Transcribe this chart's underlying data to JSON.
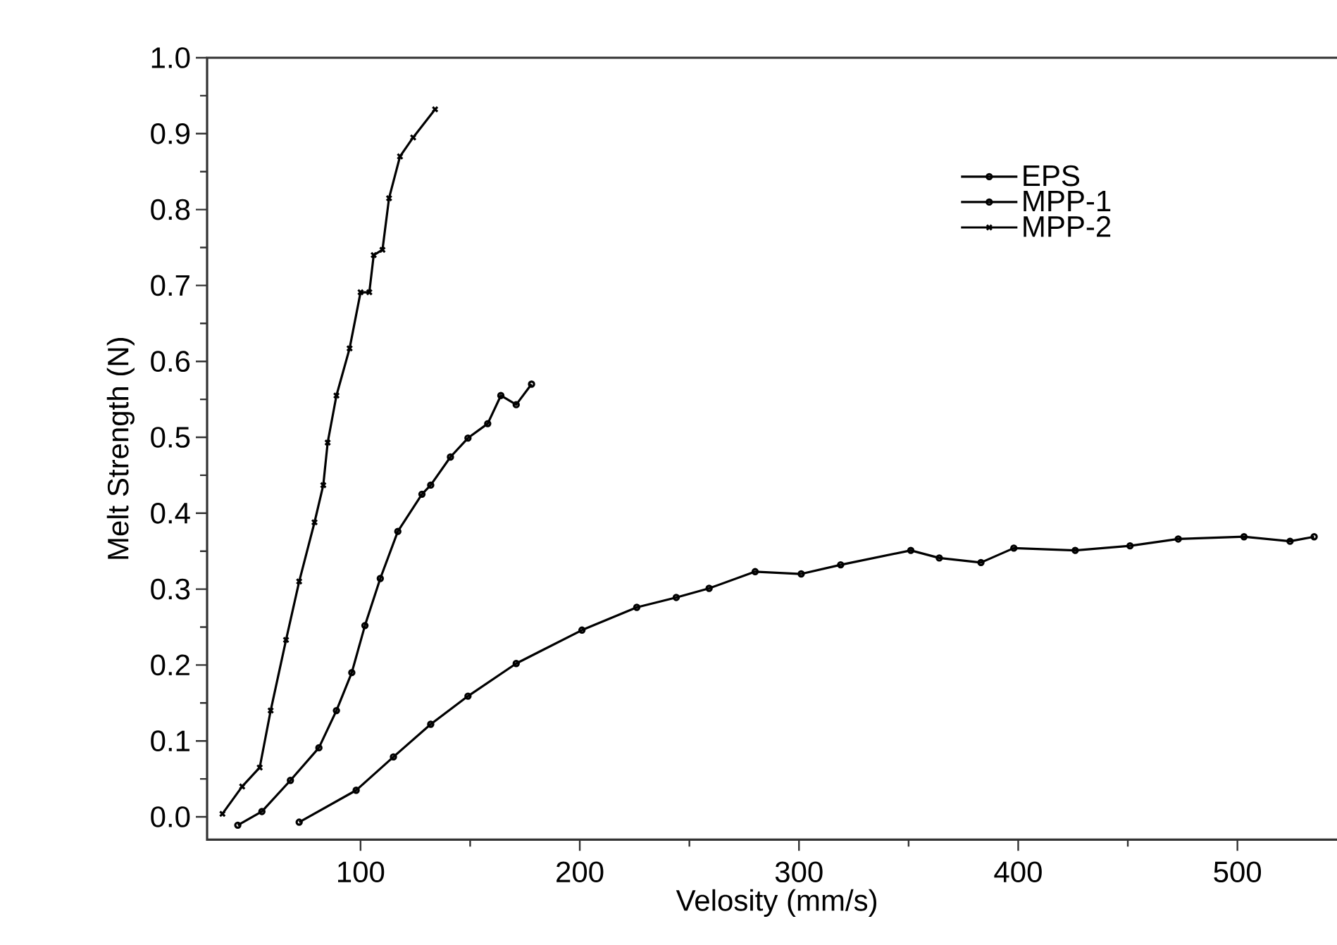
{
  "chart_data": {
    "type": "line",
    "xlabel": "Velosity (mm/s)",
    "ylabel": "Melt Strength (N)",
    "xlim": [
      30,
      550
    ],
    "ylim": [
      -0.03,
      1.0
    ],
    "xticks": [
      100,
      200,
      300,
      400,
      500
    ],
    "yticks": [
      {
        "value": 0,
        "label": "0.0"
      },
      0.1,
      0.2,
      0.3,
      0.4,
      0.5,
      0.6,
      0.7,
      0.8,
      0.9,
      {
        "value": 1,
        "label": "1.0"
      }
    ],
    "grid": false,
    "legend": "top right",
    "line_style": "solid",
    "series": [
      {
        "name": "EPS",
        "color": "#000000",
        "marker": "circle",
        "x": [
          72,
          98,
          115,
          132,
          149,
          171,
          201,
          226,
          244,
          259,
          280,
          301,
          319,
          351,
          364,
          383,
          398,
          426,
          451,
          473,
          503,
          524,
          535
        ],
        "values": [
          -0.007,
          0.035,
          0.079,
          0.122,
          0.159,
          0.202,
          0.246,
          0.276,
          0.289,
          0.301,
          0.323,
          0.32,
          0.332,
          0.351,
          0.341,
          0.335,
          0.354,
          0.351,
          0.357,
          0.366,
          0.369,
          0.363,
          0.369
        ]
      },
      {
        "name": "MPP-1",
        "color": "#000000",
        "marker": "circle",
        "x": [
          44,
          55,
          68,
          81,
          89,
          96,
          102,
          109,
          117,
          128,
          132,
          141,
          149,
          158,
          164,
          171,
          178
        ],
        "values": [
          -0.011,
          0.007,
          0.048,
          0.091,
          0.14,
          0.19,
          0.252,
          0.314,
          0.376,
          0.425,
          0.437,
          0.474,
          0.499,
          0.518,
          0.555,
          0.543,
          0.57
        ]
      },
      {
        "name": "MPP-2",
        "color": "#000000",
        "marker": "cross",
        "x": [
          37,
          46,
          54,
          59,
          66,
          72,
          79,
          83,
          85,
          89,
          95,
          100,
          104,
          106,
          110,
          113,
          118,
          124,
          134
        ],
        "values": [
          0.004,
          0.04,
          0.065,
          0.14,
          0.233,
          0.31,
          0.388,
          0.437,
          0.493,
          0.555,
          0.617,
          0.691,
          0.691,
          0.74,
          0.747,
          0.815,
          0.87,
          0.895,
          0.932
        ]
      }
    ]
  }
}
